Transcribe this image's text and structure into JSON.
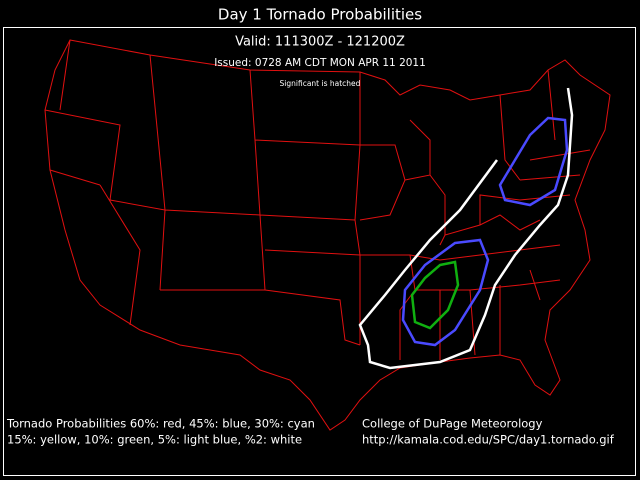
{
  "header": {
    "title": "Day 1 Tornado Probabilities",
    "valid": "Valid: 111300Z - 121200Z",
    "issued": "Issued: 0728 AM CDT MON APR 11 2011",
    "note": "Significant is hatched"
  },
  "legend": {
    "lines": [
      "Tornado Probabilities 60%: red, 45%: blue, 30%: cyan",
      "15%: yellow, 10%: green, 5%: light blue, %2: white"
    ]
  },
  "credit": {
    "lines": [
      "College of DuPage Meteorology",
      "http://kamala.cod.edu/SPC/day1.tornado.gif"
    ]
  }
}
